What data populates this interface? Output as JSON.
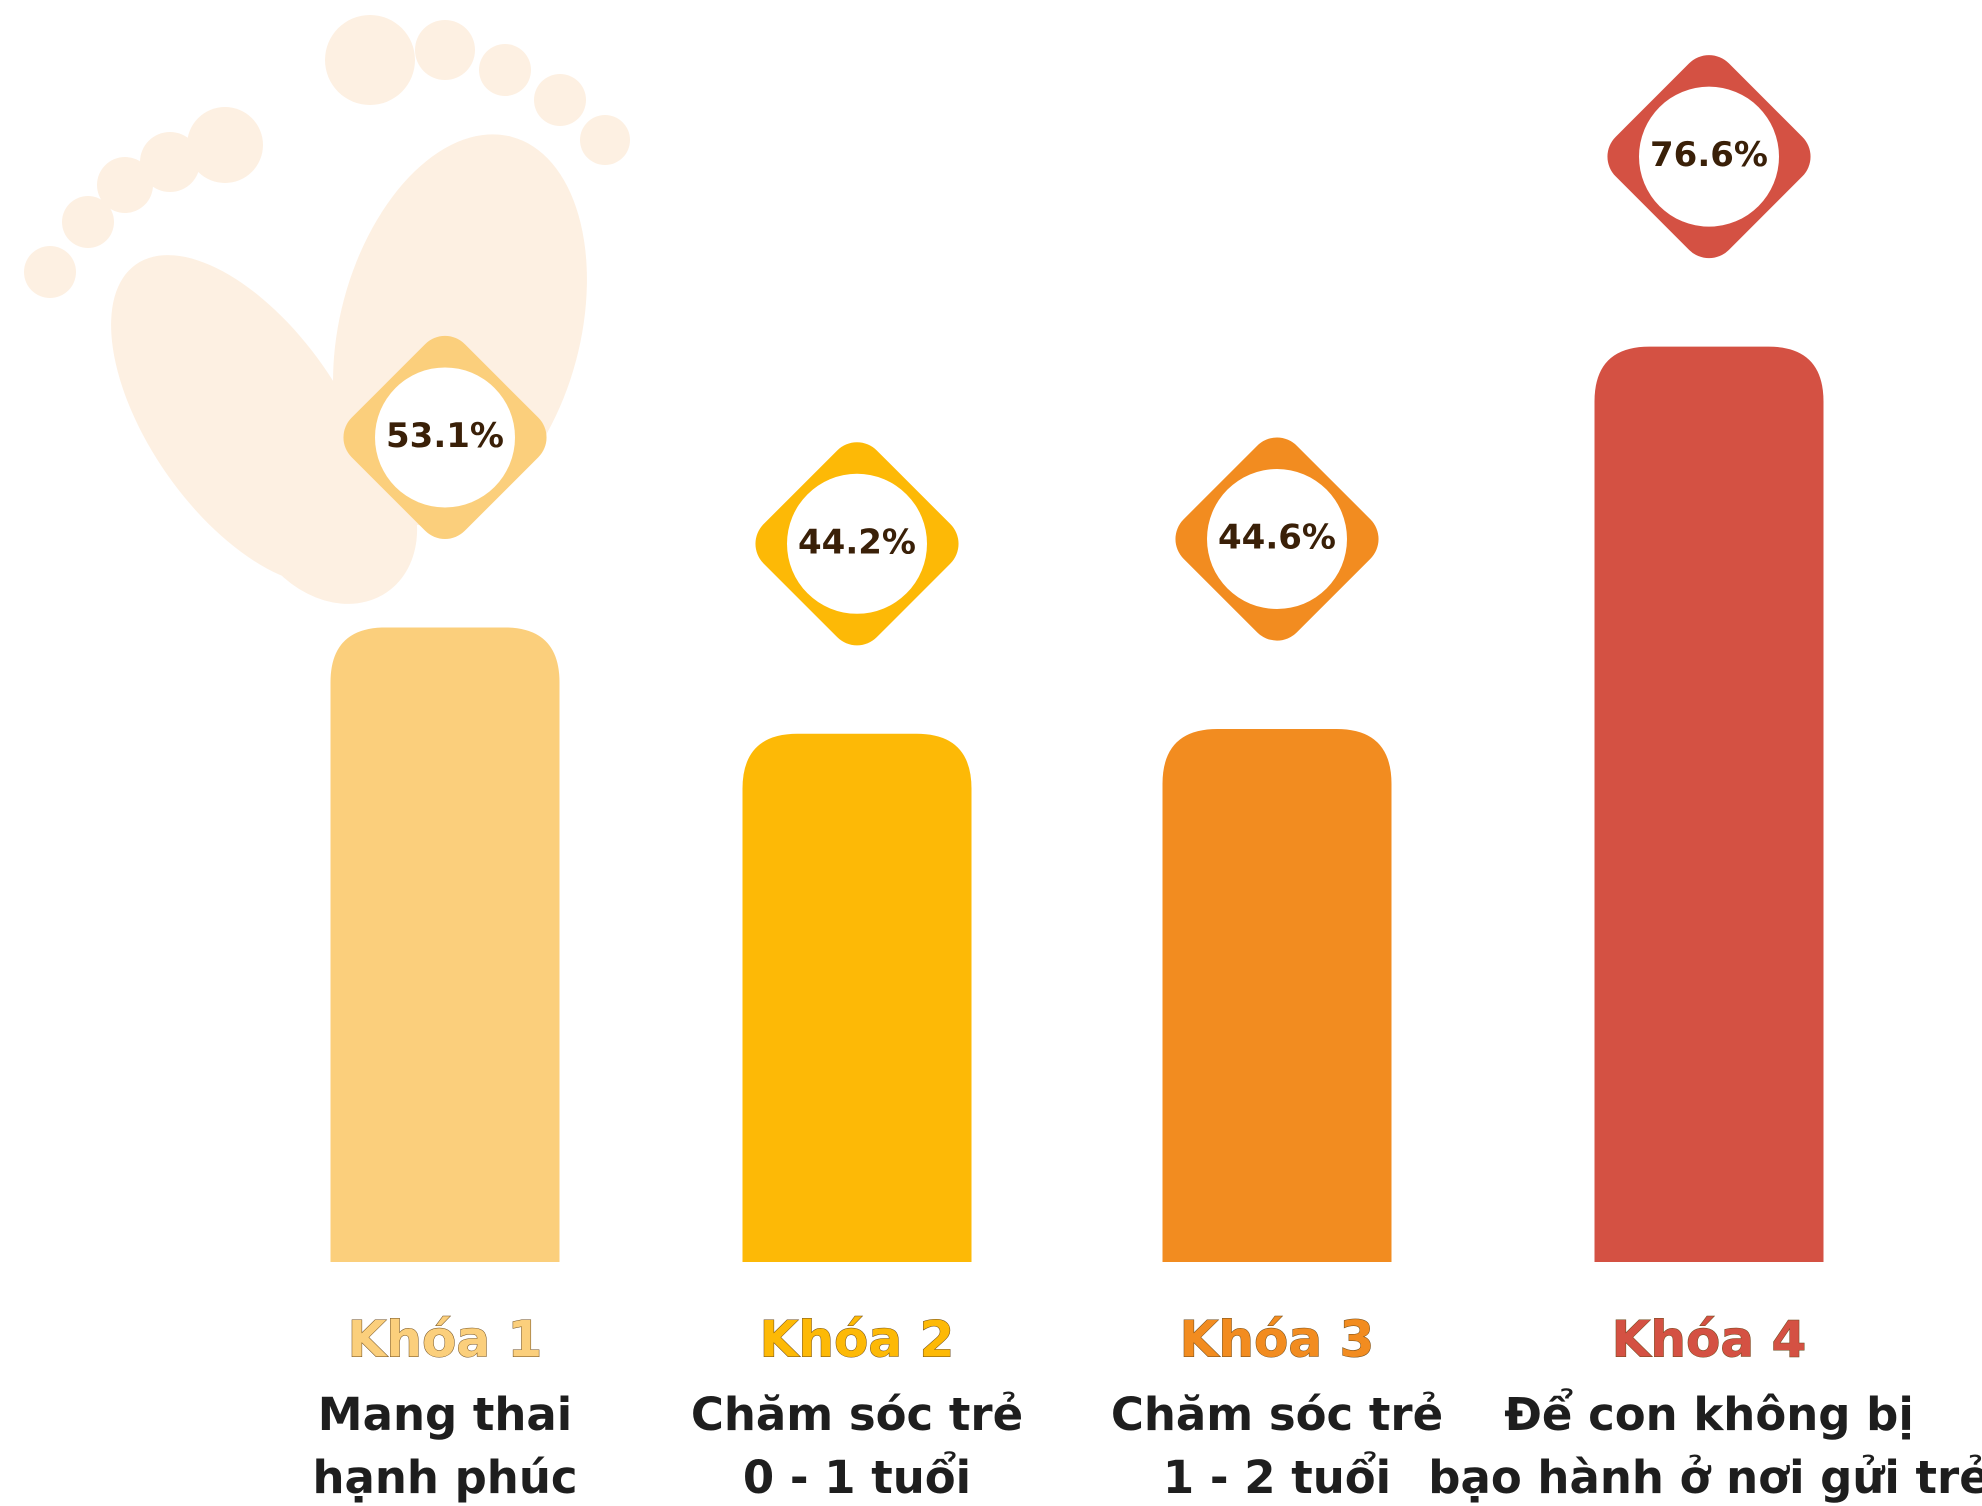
{
  "chart_data": {
    "type": "bar",
    "categories": [
      "Khóa 1",
      "Khóa 2",
      "Khóa 3",
      "Khóa 4"
    ],
    "descriptions": [
      [
        "Mang thai",
        "hạnh phúc"
      ],
      [
        "Chăm sóc trẻ",
        "0 - 1 tuổi"
      ],
      [
        "Chăm sóc trẻ",
        "1 - 2 tuổi"
      ],
      [
        "Để con không bị",
        "bạo hành ở nơi gửi trẻ"
      ]
    ],
    "values": [
      53.1,
      44.2,
      44.6,
      76.6
    ],
    "value_labels": [
      "53.1%",
      "44.2%",
      "44.6%",
      "76.6%"
    ],
    "colors": [
      "#fbcf7c",
      "#fdb906",
      "#f28c20",
      "#d45143"
    ]
  }
}
